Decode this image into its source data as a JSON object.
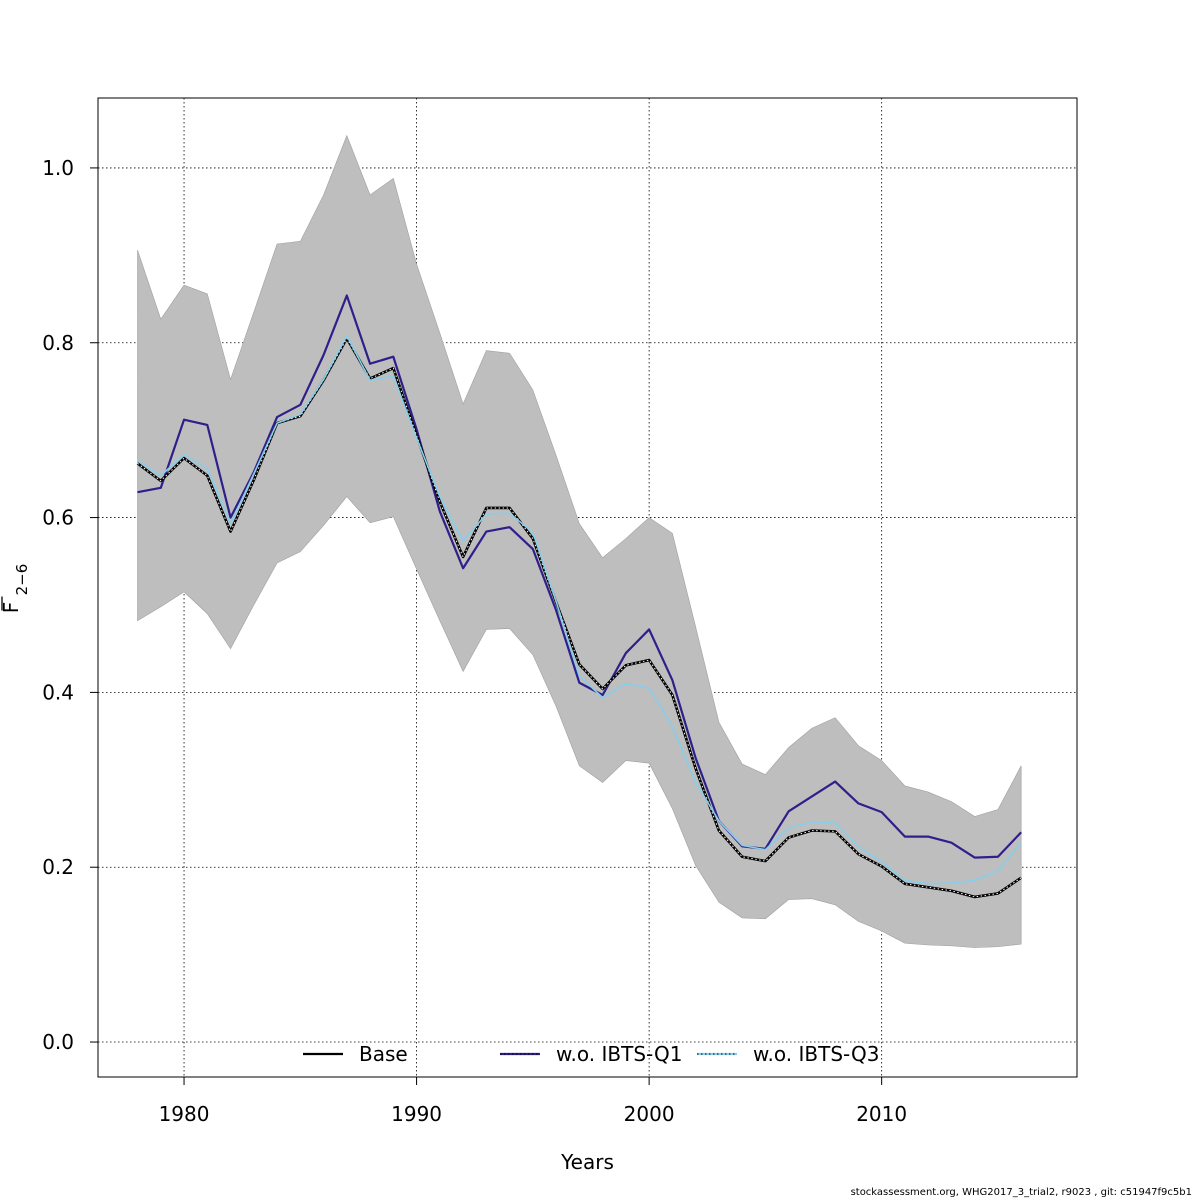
{
  "chart_data": {
    "type": "line",
    "xlabel": "Years",
    "ylabel": "F",
    "ylabel_subscript": "2−6",
    "xlim": [
      1976.3,
      2018.4
    ],
    "ylim": [
      -0.04,
      1.08
    ],
    "x_ticks": [
      1980,
      1990,
      2000,
      2010
    ],
    "y_ticks": [
      0.0,
      0.2,
      0.4,
      0.6,
      0.8,
      1.0
    ],
    "x_tick_labels": [
      "1980",
      "1990",
      "2000",
      "2010"
    ],
    "y_tick_labels": [
      "0.0",
      "0.2",
      "0.4",
      "0.6",
      "0.8",
      "1.0"
    ],
    "grid": true,
    "legend_position": "bottom",
    "x": [
      1978,
      1979,
      1980,
      1981,
      1982,
      1983,
      1984,
      1985,
      1986,
      1987,
      1988,
      1989,
      1990,
      1991,
      1992,
      1993,
      1994,
      1995,
      1996,
      1997,
      1998,
      1999,
      2000,
      2001,
      2002,
      2003,
      2004,
      2005,
      2006,
      2007,
      2008,
      2009,
      2010,
      2011,
      2012,
      2013,
      2014,
      2015,
      2016
    ],
    "band": {
      "name": "confidence interval",
      "color": "#bebebe",
      "upper": [
        0.906,
        0.827,
        0.866,
        0.856,
        0.758,
        0.835,
        0.913,
        0.916,
        0.969,
        1.037,
        0.969,
        0.988,
        0.89,
        0.811,
        0.73,
        0.791,
        0.788,
        0.746,
        0.671,
        0.593,
        0.554,
        0.576,
        0.6,
        0.582,
        0.475,
        0.366,
        0.318,
        0.306,
        0.337,
        0.359,
        0.371,
        0.339,
        0.322,
        0.293,
        0.286,
        0.275,
        0.258,
        0.266,
        0.316
      ],
      "lower": [
        0.482,
        0.498,
        0.515,
        0.49,
        0.45,
        0.5,
        0.548,
        0.561,
        0.591,
        0.624,
        0.594,
        0.601,
        0.541,
        0.482,
        0.424,
        0.472,
        0.473,
        0.443,
        0.384,
        0.316,
        0.297,
        0.322,
        0.319,
        0.267,
        0.202,
        0.16,
        0.142,
        0.141,
        0.163,
        0.164,
        0.157,
        0.138,
        0.127,
        0.113,
        0.111,
        0.11,
        0.108,
        0.109,
        0.112
      ]
    },
    "series": [
      {
        "name": "Base",
        "color": "#000000",
        "style": "solid",
        "values": [
          0.662,
          0.642,
          0.668,
          0.648,
          0.584,
          0.643,
          0.708,
          0.716,
          0.757,
          0.805,
          0.759,
          0.771,
          0.694,
          0.618,
          0.555,
          0.611,
          0.611,
          0.576,
          0.503,
          0.432,
          0.404,
          0.431,
          0.437,
          0.397,
          0.313,
          0.242,
          0.212,
          0.207,
          0.234,
          0.242,
          0.241,
          0.215,
          0.201,
          0.181,
          0.177,
          0.173,
          0.166,
          0.17,
          0.188
        ]
      },
      {
        "name": "w.o. IBTS-Q1",
        "color": "#2e1f8a",
        "style": "dotted",
        "values": [
          0.629,
          0.634,
          0.712,
          0.706,
          0.6,
          0.652,
          0.715,
          0.729,
          0.786,
          0.854,
          0.776,
          0.784,
          0.701,
          0.607,
          0.542,
          0.584,
          0.589,
          0.564,
          0.494,
          0.411,
          0.397,
          0.445,
          0.472,
          0.414,
          0.325,
          0.253,
          0.224,
          0.221,
          0.264,
          0.281,
          0.298,
          0.273,
          0.263,
          0.235,
          0.235,
          0.228,
          0.211,
          0.212,
          0.24
        ]
      },
      {
        "name": "w.o. IBTS-Q3",
        "color": "#87ceeb",
        "style": "dotted",
        "values": [
          0.665,
          0.648,
          0.672,
          0.656,
          0.593,
          0.65,
          0.708,
          0.718,
          0.758,
          0.808,
          0.757,
          0.762,
          0.691,
          0.624,
          0.573,
          0.604,
          0.605,
          0.583,
          0.504,
          0.419,
          0.394,
          0.41,
          0.405,
          0.361,
          0.297,
          0.253,
          0.225,
          0.22,
          0.245,
          0.252,
          0.251,
          0.224,
          0.206,
          0.185,
          0.181,
          0.182,
          0.185,
          0.196,
          0.228
        ]
      }
    ]
  },
  "footer": "stockassessment.org, WHG2017_3_trial2, r9023 , git: c51947f9c5b1"
}
